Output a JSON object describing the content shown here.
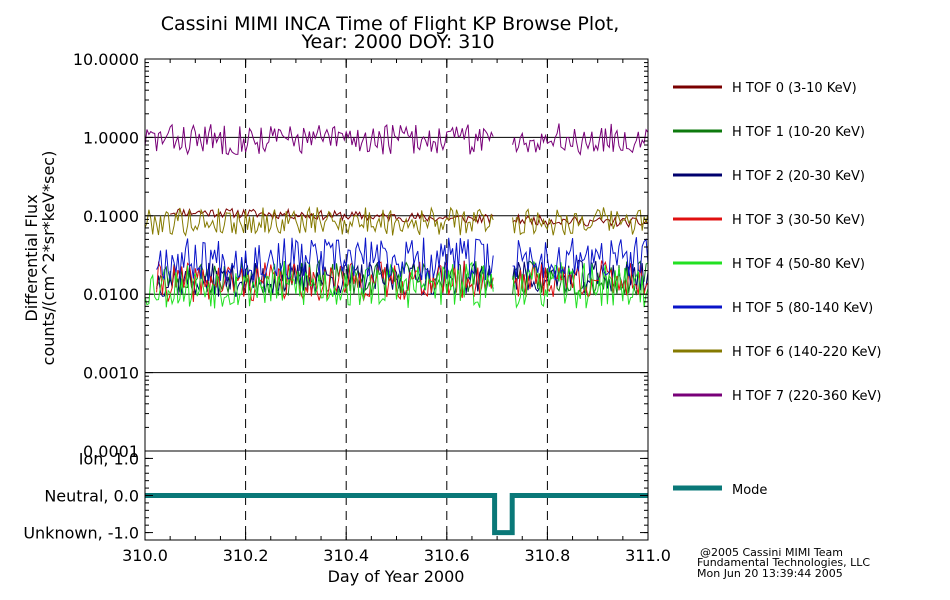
{
  "chart_data": {
    "type": "line",
    "title_line1": "Cassini MIMI INCA Time of Flight KP Browse Plot,",
    "title_line2": "Year: 2000 DOY: 310",
    "xlabel": "Day of Year 2000",
    "xlim": [
      310.0,
      311.0
    ],
    "x_ticks": [
      "310.0",
      "310.2",
      "310.4",
      "310.6",
      "310.8",
      "311.0"
    ],
    "flux_panel": {
      "ylabel_line1": "Differential Flux",
      "ylabel_line2": "counts/(cm^2*sr*keV*sec)",
      "yscale": "log",
      "ylim": [
        0.0001,
        10.0
      ],
      "y_ticks": [
        "10.0000",
        "1.0000",
        "0.1000",
        "0.0100",
        "0.0010",
        "0.0001"
      ],
      "gaps": [
        [
          310.695,
          310.73
        ]
      ],
      "series": [
        {
          "name": "H TOF 0 (3-10 KeV)",
          "color": "#7a0000",
          "start": 310.05,
          "level": 0.115,
          "noise": 0.06,
          "drift": -0.15,
          "seed": 11
        },
        {
          "name": "H TOF 1 (10-20 KeV)",
          "color": "#0d7a0d",
          "start": 310.02,
          "level": 0.016,
          "noise": 0.22,
          "drift": 0.0,
          "seed": 23
        },
        {
          "name": "H TOF 2 (20-30 KeV)",
          "color": "#00006e",
          "start": 310.02,
          "level": 0.015,
          "noise": 0.22,
          "drift": 0.05,
          "seed": 37
        },
        {
          "name": "H TOF 3 (30-50 KeV)",
          "color": "#e01010",
          "start": 310.02,
          "level": 0.014,
          "noise": 0.25,
          "drift": 0.05,
          "seed": 41
        },
        {
          "name": "H TOF 4 (50-80 KeV)",
          "color": "#22e022",
          "start": 310.0,
          "level": 0.013,
          "noise": 0.3,
          "drift": 0.0,
          "seed": 53
        },
        {
          "name": "H TOF 5 (80-140 KeV)",
          "color": "#0a14c8",
          "start": 310.02,
          "level": 0.028,
          "noise": 0.28,
          "drift": 0.0,
          "seed": 67
        },
        {
          "name": "H TOF 6 (140-220 KeV)",
          "color": "#857a00",
          "start": 310.0,
          "level": 0.085,
          "noise": 0.18,
          "drift": 0.0,
          "seed": 79
        },
        {
          "name": "H TOF 7 (220-360 KeV)",
          "color": "#780078",
          "start": 310.0,
          "level": 0.95,
          "noise": 0.2,
          "drift": 0.0,
          "seed": 83
        }
      ]
    },
    "mode_panel": {
      "ylim": [
        -1.2,
        1.2
      ],
      "y_ticks": [
        "Ion, 1.0",
        "Neutral, 0.0",
        "Unknown, -1.0"
      ],
      "series": {
        "name": "Mode",
        "color": "#0a7878",
        "x": [
          310.0,
          310.695,
          310.695,
          310.73,
          310.73,
          311.0
        ],
        "y": [
          0,
          0,
          -1,
          -1,
          0,
          0
        ]
      }
    },
    "credits": [
      "@2005 Cassini MIMI Team",
      "Fundamental Technologies, LLC",
      "Mon Jun 20 13:39:44 2005"
    ]
  }
}
